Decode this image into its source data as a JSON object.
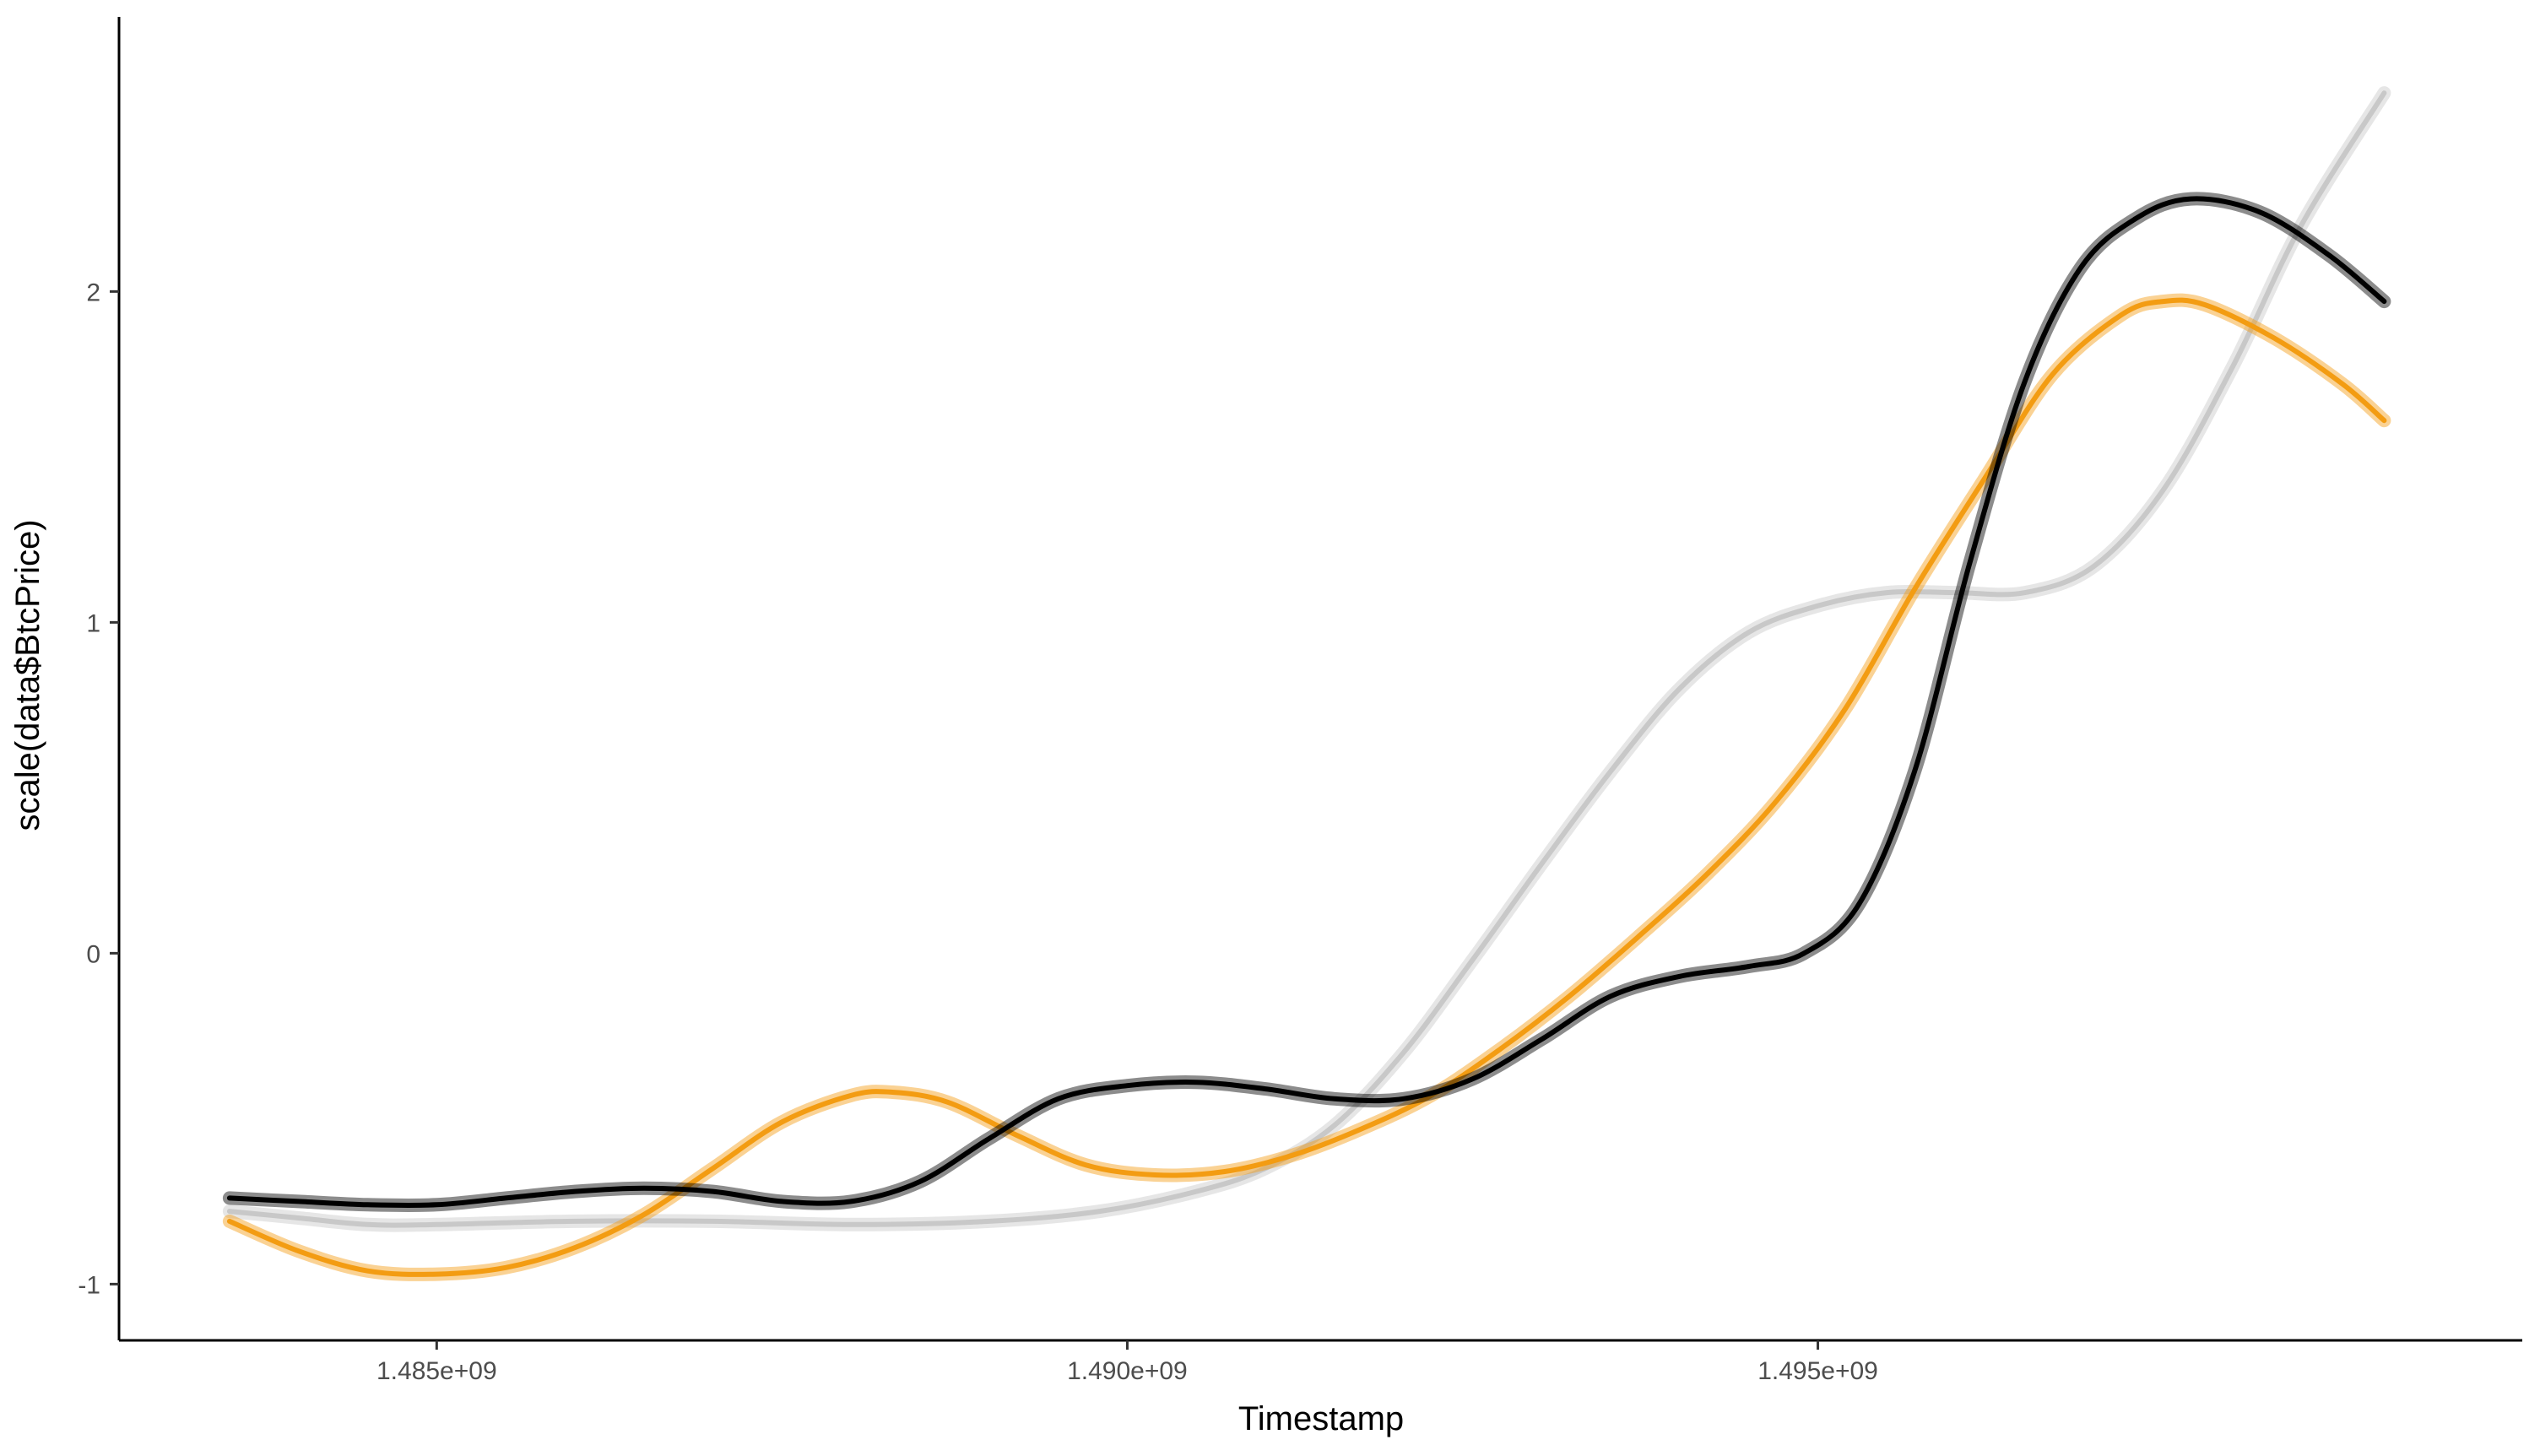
{
  "chart_data": {
    "type": "line",
    "title": "",
    "xlabel": "Timestamp",
    "ylabel": "scale(data$BtcPrice)",
    "xlim": [
      1482700000,
      1500100000
    ],
    "ylim": [
      -1.17,
      2.83
    ],
    "x_ticks": [
      {
        "value": 1485000000,
        "label": "1.485e+09"
      },
      {
        "value": 1490000000,
        "label": "1.490e+09"
      },
      {
        "value": 1495000000,
        "label": "1.495e+09"
      }
    ],
    "y_ticks": [
      {
        "value": -1,
        "label": "-1"
      },
      {
        "value": 0,
        "label": "0"
      },
      {
        "value": 1,
        "label": "1"
      },
      {
        "value": 2,
        "label": "2"
      }
    ],
    "grid": false,
    "legend": "none",
    "series": [
      {
        "color": "#c8c8c8",
        "points": [
          [
            1483500000,
            -0.78
          ],
          [
            1484000000,
            -0.8
          ],
          [
            1484500000,
            -0.82
          ],
          [
            1485000000,
            -0.82
          ],
          [
            1486000000,
            -0.81
          ],
          [
            1487000000,
            -0.81
          ],
          [
            1488000000,
            -0.82
          ],
          [
            1489000000,
            -0.81
          ],
          [
            1489800000,
            -0.78
          ],
          [
            1490500000,
            -0.72
          ],
          [
            1491000000,
            -0.65
          ],
          [
            1491500000,
            -0.52
          ],
          [
            1492000000,
            -0.3
          ],
          [
            1492500000,
            -0.02
          ],
          [
            1493000000,
            0.27
          ],
          [
            1493500000,
            0.55
          ],
          [
            1494000000,
            0.8
          ],
          [
            1494500000,
            0.97
          ],
          [
            1495000000,
            1.05
          ],
          [
            1495500000,
            1.09
          ],
          [
            1496000000,
            1.09
          ],
          [
            1496500000,
            1.09
          ],
          [
            1497000000,
            1.17
          ],
          [
            1497500000,
            1.4
          ],
          [
            1498000000,
            1.77
          ],
          [
            1498500000,
            2.2
          ],
          [
            1499100000,
            2.6
          ]
        ]
      },
      {
        "color": "#f39c12",
        "points": [
          [
            1483500000,
            -0.81
          ],
          [
            1484000000,
            -0.9
          ],
          [
            1484500000,
            -0.96
          ],
          [
            1485000000,
            -0.97
          ],
          [
            1485500000,
            -0.95
          ],
          [
            1486000000,
            -0.89
          ],
          [
            1486500000,
            -0.79
          ],
          [
            1487000000,
            -0.65
          ],
          [
            1487500000,
            -0.51
          ],
          [
            1488000000,
            -0.43
          ],
          [
            1488300000,
            -0.42
          ],
          [
            1488700000,
            -0.45
          ],
          [
            1489200000,
            -0.55
          ],
          [
            1489700000,
            -0.64
          ],
          [
            1490200000,
            -0.67
          ],
          [
            1490700000,
            -0.66
          ],
          [
            1491200000,
            -0.61
          ],
          [
            1491700000,
            -0.53
          ],
          [
            1492200000,
            -0.43
          ],
          [
            1492700000,
            -0.29
          ],
          [
            1493200000,
            -0.13
          ],
          [
            1493700000,
            0.05
          ],
          [
            1494200000,
            0.24
          ],
          [
            1494700000,
            0.46
          ],
          [
            1495200000,
            0.74
          ],
          [
            1495700000,
            1.1
          ],
          [
            1496200000,
            1.43
          ],
          [
            1496700000,
            1.75
          ],
          [
            1497200000,
            1.93
          ],
          [
            1497500000,
            1.97
          ],
          [
            1497800000,
            1.96
          ],
          [
            1498300000,
            1.86
          ],
          [
            1498800000,
            1.72
          ],
          [
            1499100000,
            1.61
          ]
        ]
      },
      {
        "color": "#000000",
        "points": [
          [
            1483500000,
            -0.74
          ],
          [
            1484000000,
            -0.75
          ],
          [
            1484500000,
            -0.76
          ],
          [
            1485000000,
            -0.76
          ],
          [
            1485500000,
            -0.74
          ],
          [
            1486000000,
            -0.72
          ],
          [
            1486500000,
            -0.71
          ],
          [
            1487000000,
            -0.72
          ],
          [
            1487500000,
            -0.75
          ],
          [
            1488000000,
            -0.75
          ],
          [
            1488500000,
            -0.69
          ],
          [
            1489000000,
            -0.56
          ],
          [
            1489500000,
            -0.44
          ],
          [
            1490000000,
            -0.4
          ],
          [
            1490500000,
            -0.39
          ],
          [
            1491000000,
            -0.41
          ],
          [
            1491500000,
            -0.44
          ],
          [
            1492000000,
            -0.44
          ],
          [
            1492500000,
            -0.38
          ],
          [
            1493000000,
            -0.26
          ],
          [
            1493500000,
            -0.13
          ],
          [
            1494000000,
            -0.07
          ],
          [
            1494500000,
            -0.04
          ],
          [
            1494900000,
            0.0
          ],
          [
            1495300000,
            0.15
          ],
          [
            1495700000,
            0.55
          ],
          [
            1496100000,
            1.18
          ],
          [
            1496500000,
            1.73
          ],
          [
            1496900000,
            2.07
          ],
          [
            1497300000,
            2.22
          ],
          [
            1497700000,
            2.28
          ],
          [
            1498200000,
            2.24
          ],
          [
            1498700000,
            2.11
          ],
          [
            1499100000,
            1.97
          ]
        ]
      }
    ]
  }
}
